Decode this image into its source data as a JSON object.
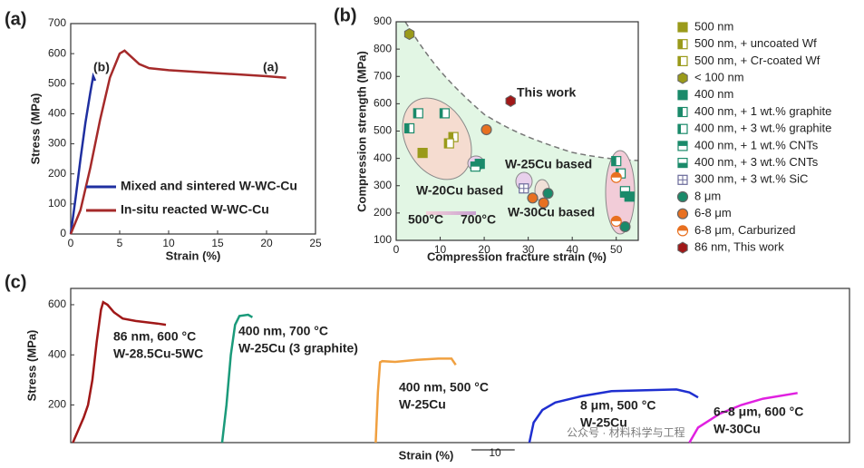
{
  "chart_data": [
    {
      "type": "line",
      "panel_label": "(a)",
      "x_label": "Strain (%)",
      "y_label": "Stress (MPa)",
      "xlim": [
        0,
        25
      ],
      "xticks": [
        0,
        5,
        10,
        15,
        20,
        25
      ],
      "ylim": [
        0,
        700
      ],
      "yticks": [
        0,
        100,
        200,
        300,
        400,
        500,
        600,
        700
      ],
      "annotations": [
        "(b)",
        "(a)"
      ],
      "series": [
        {
          "name": "Mixed and sintered W-WC-Cu",
          "color": "#1f2fa0",
          "x": [
            0,
            0.5,
            1,
            1.5,
            2,
            2.3,
            2.5
          ],
          "values": [
            0,
            120,
            250,
            370,
            470,
            525,
            510
          ]
        },
        {
          "name": "In-situ reacted W-WC-Cu",
          "color": "#a52a2a",
          "x": [
            0,
            1,
            2,
            3,
            4,
            5,
            5.5,
            6,
            7,
            8,
            10,
            15,
            20,
            22
          ],
          "values": [
            0,
            80,
            220,
            380,
            520,
            600,
            610,
            595,
            565,
            552,
            545,
            535,
            525,
            520
          ]
        }
      ]
    },
    {
      "type": "scatter",
      "panel_label": "(b)",
      "x_label": "Compression fracture strain (%)",
      "y_label": "Compression strength (MPa)",
      "xlim": [
        0,
        55
      ],
      "xticks": [
        0,
        10,
        20,
        30,
        40,
        50
      ],
      "ylim": [
        100,
        900
      ],
      "yticks": [
        100,
        200,
        300,
        400,
        500,
        600,
        700,
        800,
        900
      ],
      "annotations": [
        "This work",
        "W-25Cu based",
        "W-20Cu based",
        "W-30Cu based",
        "500°C",
        "700°C"
      ],
      "series": [
        {
          "name": "500 nm",
          "color": "#9a9a1a",
          "marker": "square",
          "x": [
            6
          ],
          "values": [
            420
          ]
        },
        {
          "name": "500 nm, + uncoated Wf",
          "color": "#9a9a1a",
          "marker": "square-half",
          "x": [
            13
          ],
          "values": [
            478
          ]
        },
        {
          "name": "500 nm, + Cr-coated Wf",
          "color": "#9a9a1a",
          "marker": "square-open",
          "x": [
            12
          ],
          "values": [
            455
          ]
        },
        {
          "name": "< 100 nm",
          "color": "#9a9a1a",
          "marker": "hexagon",
          "x": [
            3
          ],
          "values": [
            855
          ]
        },
        {
          "name": "400 nm",
          "color": "#1a8a6a",
          "marker": "square",
          "x": [
            19,
            52,
            53
          ],
          "values": [
            380,
            275,
            260
          ]
        },
        {
          "name": "400 nm, + 1 wt.% graphite",
          "color": "#1a8a6a",
          "marker": "square-half",
          "x": [
            3,
            50
          ],
          "values": [
            510,
            390
          ]
        },
        {
          "name": "400 nm, + 3 wt.% graphite",
          "color": "#1a8a6a",
          "marker": "square-open",
          "x": [
            5,
            11,
            51
          ],
          "values": [
            565,
            565,
            345
          ]
        },
        {
          "name": "400 nm, + 1 wt.% CNTs",
          "color": "#1a8a6a",
          "marker": "square-top",
          "x": [
            18
          ],
          "values": [
            370
          ]
        },
        {
          "name": "400 nm, + 3 wt.% CNTs",
          "color": "#1a8a6a",
          "marker": "square-bottom",
          "x": [
            52
          ],
          "values": [
            280
          ]
        },
        {
          "name": "300 nm, + 3 wt.% SiC",
          "color": "#6a6a9a",
          "marker": "square-cross",
          "x": [
            29
          ],
          "values": [
            290
          ]
        },
        {
          "name": "8 μm",
          "color": "#1a8a6a",
          "marker": "circle",
          "x": [
            34.5,
            52
          ],
          "values": [
            272,
            150
          ]
        },
        {
          "name": "6-8 μm",
          "color": "#e87020",
          "marker": "circle",
          "x": [
            31,
            33.5,
            20.5
          ],
          "values": [
            255,
            237,
            505
          ]
        },
        {
          "name": "6-8 μm, Carburized",
          "color": "#e87020",
          "marker": "circle-half",
          "x": [
            50,
            50
          ],
          "values": [
            330,
            170
          ]
        },
        {
          "name": "86 nm, This work",
          "color": "#a01818",
          "marker": "hexagon",
          "x": [
            26
          ],
          "values": [
            610
          ]
        }
      ]
    },
    {
      "type": "line",
      "panel_label": "(c)",
      "x_label": "Strain (%)",
      "y_label": "Stress (MPa)",
      "xlim": [
        0,
        180
      ],
      "ylim": [
        50,
        665
      ],
      "yticks": [
        200,
        400,
        600
      ],
      "scale_bar": 10,
      "watermark": "公众号 · 材料科学与工程",
      "series": [
        {
          "name": "86 nm, 600 °C",
          "composition": "W-28.5Cu-5WC",
          "color": "#a01818",
          "x": [
            0.5,
            3,
            4,
            5,
            6,
            7,
            7.5,
            8.5,
            10,
            12,
            15,
            20,
            22
          ],
          "values": [
            50,
            150,
            200,
            300,
            450,
            580,
            610,
            600,
            570,
            545,
            535,
            525,
            520
          ]
        },
        {
          "name": "400 nm, 700 °C",
          "composition": "W-25Cu (3 graphite)",
          "color": "#1a9a7a",
          "x": [
            35,
            36,
            37,
            38,
            39,
            41,
            42
          ],
          "values": [
            50,
            200,
            400,
            520,
            555,
            560,
            550
          ]
        },
        {
          "name": "400 nm, 500 °C",
          "composition": "W-25Cu",
          "color": "#f0a040",
          "x": [
            70.5,
            71,
            71.5,
            72,
            75,
            80,
            85,
            88,
            89
          ],
          "values": [
            50,
            250,
            370,
            375,
            372,
            380,
            385,
            385,
            360
          ]
        },
        {
          "name": "8 μm, 500 °C",
          "composition": "W-25Cu",
          "color": "#1f2fd0",
          "x": [
            106,
            107,
            109,
            112,
            118,
            125,
            135,
            140,
            143,
            145
          ],
          "values": [
            50,
            130,
            180,
            210,
            235,
            255,
            260,
            262,
            250,
            230
          ]
        },
        {
          "name": "6~8 μm, 600 °C",
          "composition": "W-30Cu",
          "color": "#e020e0",
          "x": [
            143,
            145,
            150,
            155,
            160,
            168
          ],
          "values": [
            50,
            110,
            165,
            200,
            225,
            248
          ]
        }
      ]
    }
  ]
}
